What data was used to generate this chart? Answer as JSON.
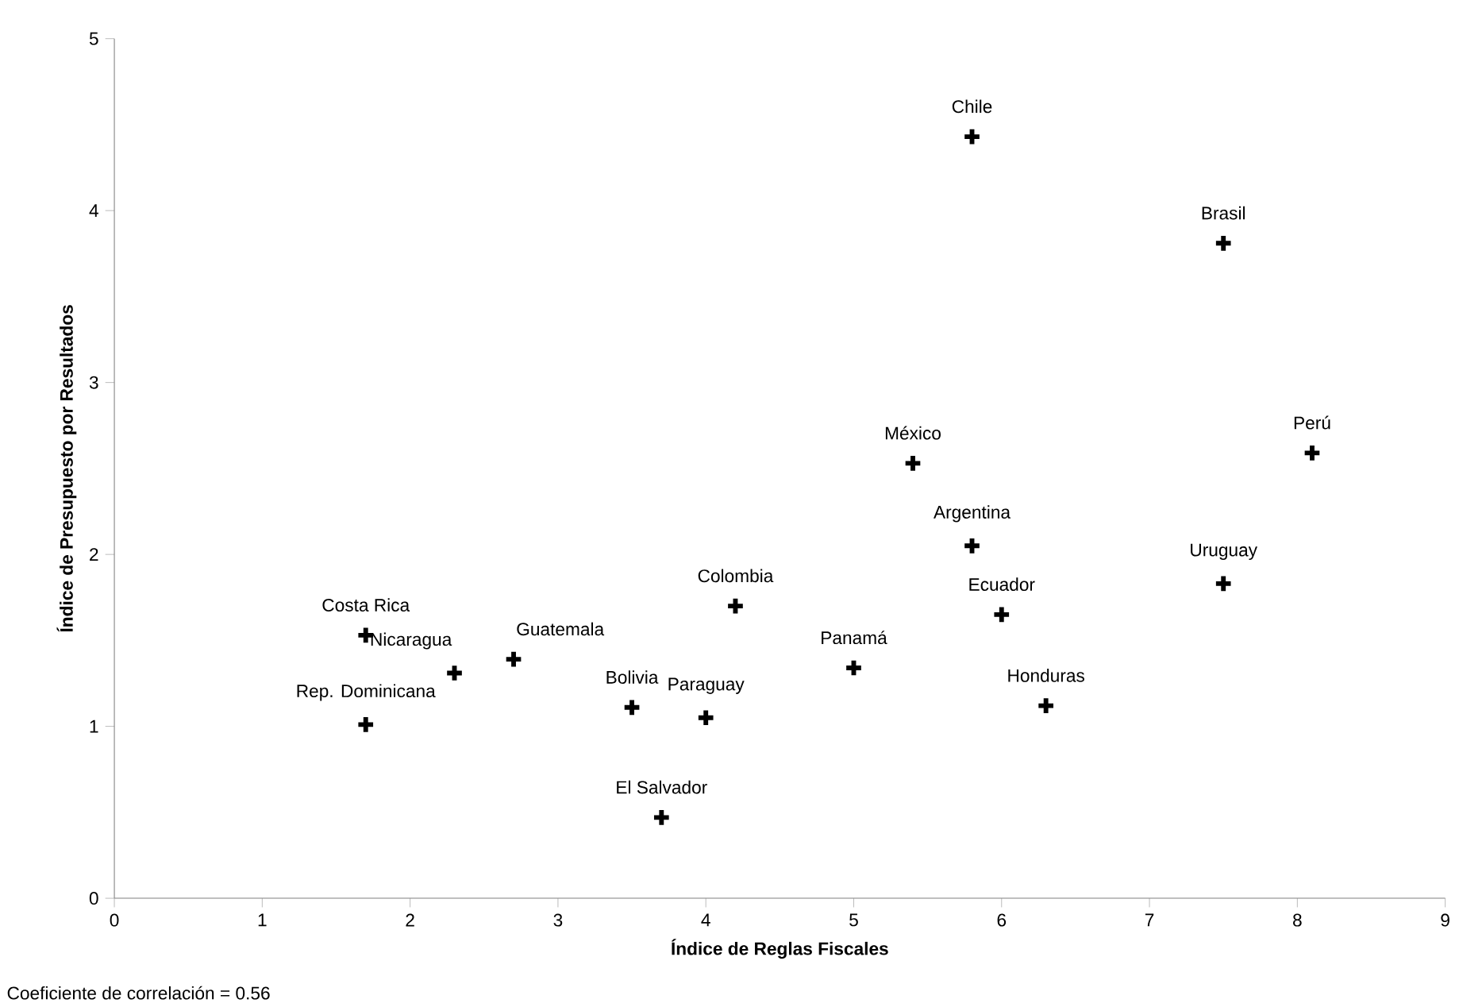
{
  "chart_data": {
    "type": "scatter",
    "xlabel": "Índice de Reglas Fiscales",
    "ylabel": "Índice de Presupuesto por Resultados",
    "x": [
      5.8,
      7.5,
      8.1,
      5.4,
      5.8,
      7.5,
      6.0,
      6.3,
      5.0,
      4.2,
      4.0,
      3.5,
      3.7,
      2.7,
      2.3,
      1.7,
      1.7
    ],
    "values": [
      4.43,
      3.81,
      2.59,
      2.53,
      2.05,
      1.83,
      1.65,
      1.12,
      1.34,
      1.7,
      1.05,
      1.11,
      0.47,
      1.39,
      1.31,
      1.53,
      1.01
    ],
    "color": "#000000",
    "marker": "cross",
    "xlim": [
      0,
      9
    ],
    "xticks": [
      0,
      1,
      2,
      3,
      4,
      5,
      6,
      7,
      8,
      9
    ],
    "ylim": [
      0,
      5
    ],
    "yticks": [
      0,
      1,
      2,
      3,
      4,
      5
    ],
    "annotations": [
      {
        "text": "Chile",
        "x": 5.8,
        "y": 4.43
      },
      {
        "text": "Brasil",
        "x": 7.5,
        "y": 3.81
      },
      {
        "text": "Perú",
        "x": 8.1,
        "y": 2.59
      },
      {
        "text": "México",
        "x": 5.4,
        "y": 2.53
      },
      {
        "text": "Argentina",
        "x": 5.8,
        "y": 2.05
      },
      {
        "text": "Uruguay",
        "x": 7.5,
        "y": 1.83
      },
      {
        "text": "Ecuador",
        "x": 6.0,
        "y": 1.65
      },
      {
        "text": "Honduras",
        "x": 6.3,
        "y": 1.12
      },
      {
        "text": "Panamá",
        "x": 5.0,
        "y": 1.34
      },
      {
        "text": "Colombia",
        "x": 4.2,
        "y": 1.7
      },
      {
        "text": "Paraguay",
        "x": 4.0,
        "y": 1.05
      },
      {
        "text": "Bolivia",
        "x": 3.5,
        "y": 1.11
      },
      {
        "text": "El Salvador",
        "x": 3.7,
        "y": 0.47
      },
      {
        "text": "Guatemala",
        "x": 2.7,
        "y": 1.39
      },
      {
        "text": "Nicaragua",
        "x": 2.3,
        "y": 1.31
      },
      {
        "text": "Costa Rica",
        "x": 1.7,
        "y": 1.53
      },
      {
        "text": "Rep. Dominicana",
        "x": 1.7,
        "y": 1.01
      },
      "Coeficiente de correlación = 0.56"
    ]
  }
}
